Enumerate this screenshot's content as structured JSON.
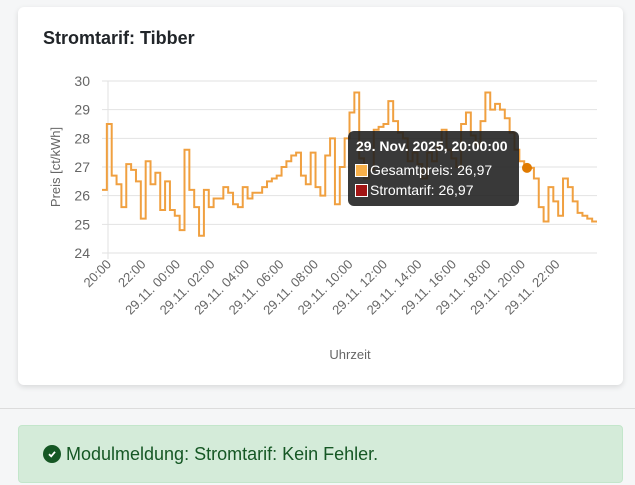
{
  "card": {
    "title": "Stromtarif: Tibber"
  },
  "chart_data": {
    "type": "line",
    "step": true,
    "title": "Stromtarif: Tibber",
    "xlabel": "Uhrzeit",
    "ylabel": "Preis [ct/kWh]",
    "ylim": [
      24,
      30
    ],
    "yticks": [
      "24",
      "25",
      "26",
      "27",
      "28",
      "29",
      "30"
    ],
    "xticks": [
      "20:00",
      "22:00",
      "29.11. 00:00",
      "29.11. 02:00",
      "29.11. 04:00",
      "29.11. 06:00",
      "29.11. 08:00",
      "29.11. 10:00",
      "29.11. 12:00",
      "29.11. 14:00",
      "29.11. 16:00",
      "29.11. 18:00",
      "29.11. 20:00",
      "29.11. 22:00"
    ],
    "grid": true,
    "series": [
      {
        "name": "Gesamtpreis",
        "color": "#f0a040",
        "values": [
          26.2,
          28.5,
          26.7,
          26.4,
          25.6,
          27.1,
          26.9,
          26.5,
          25.2,
          27.2,
          26.4,
          26.8,
          25.5,
          26.5,
          25.5,
          25.3,
          24.8,
          27.6,
          26.2,
          25.6,
          24.6,
          26.2,
          25.6,
          25.9,
          25.9,
          26.3,
          26.1,
          25.7,
          25.6,
          26.3,
          25.9,
          26.1,
          26.1,
          26.3,
          26.5,
          26.6,
          26.7,
          27.0,
          27.2,
          27.4,
          27.5,
          26.7,
          26.4,
          27.5,
          26.3,
          26.0,
          27.4,
          28.0,
          25.7,
          27.0,
          28.0,
          28.9,
          29.6,
          27.3,
          26.6,
          26.9,
          28.3,
          28.4,
          28.5,
          29.3,
          28.6,
          28.2,
          28.0,
          27.2,
          27.5,
          27.1,
          26.6,
          27.5,
          27.2,
          27.7,
          28.3,
          27.6,
          27.3,
          27.0,
          28.5,
          28.9,
          28.1,
          27.8,
          28.6,
          29.6,
          29.0,
          29.2,
          29.0,
          28.7,
          28.2,
          27.6,
          27.2,
          27.0,
          26.97,
          26.6,
          25.6,
          25.1,
          26.3,
          25.8,
          25.3,
          26.6,
          26.3,
          25.8,
          25.4,
          25.3,
          25.2,
          25.1
        ]
      },
      {
        "name": "Stromtarif",
        "color": "#a31515",
        "values": []
      }
    ],
    "tooltip": {
      "title": "29. Nov. 2025, 20:00:00",
      "rows": [
        {
          "label": "Gesamtpreis: 26,97",
          "color": "#f7b04a"
        },
        {
          "label": "Stromtarif: 26,97",
          "color": "#a31515"
        }
      ]
    }
  },
  "alert": {
    "text": "Modulmeldung: Stromtarif: Kein Fehler.",
    "icon": "check-circle-icon"
  }
}
